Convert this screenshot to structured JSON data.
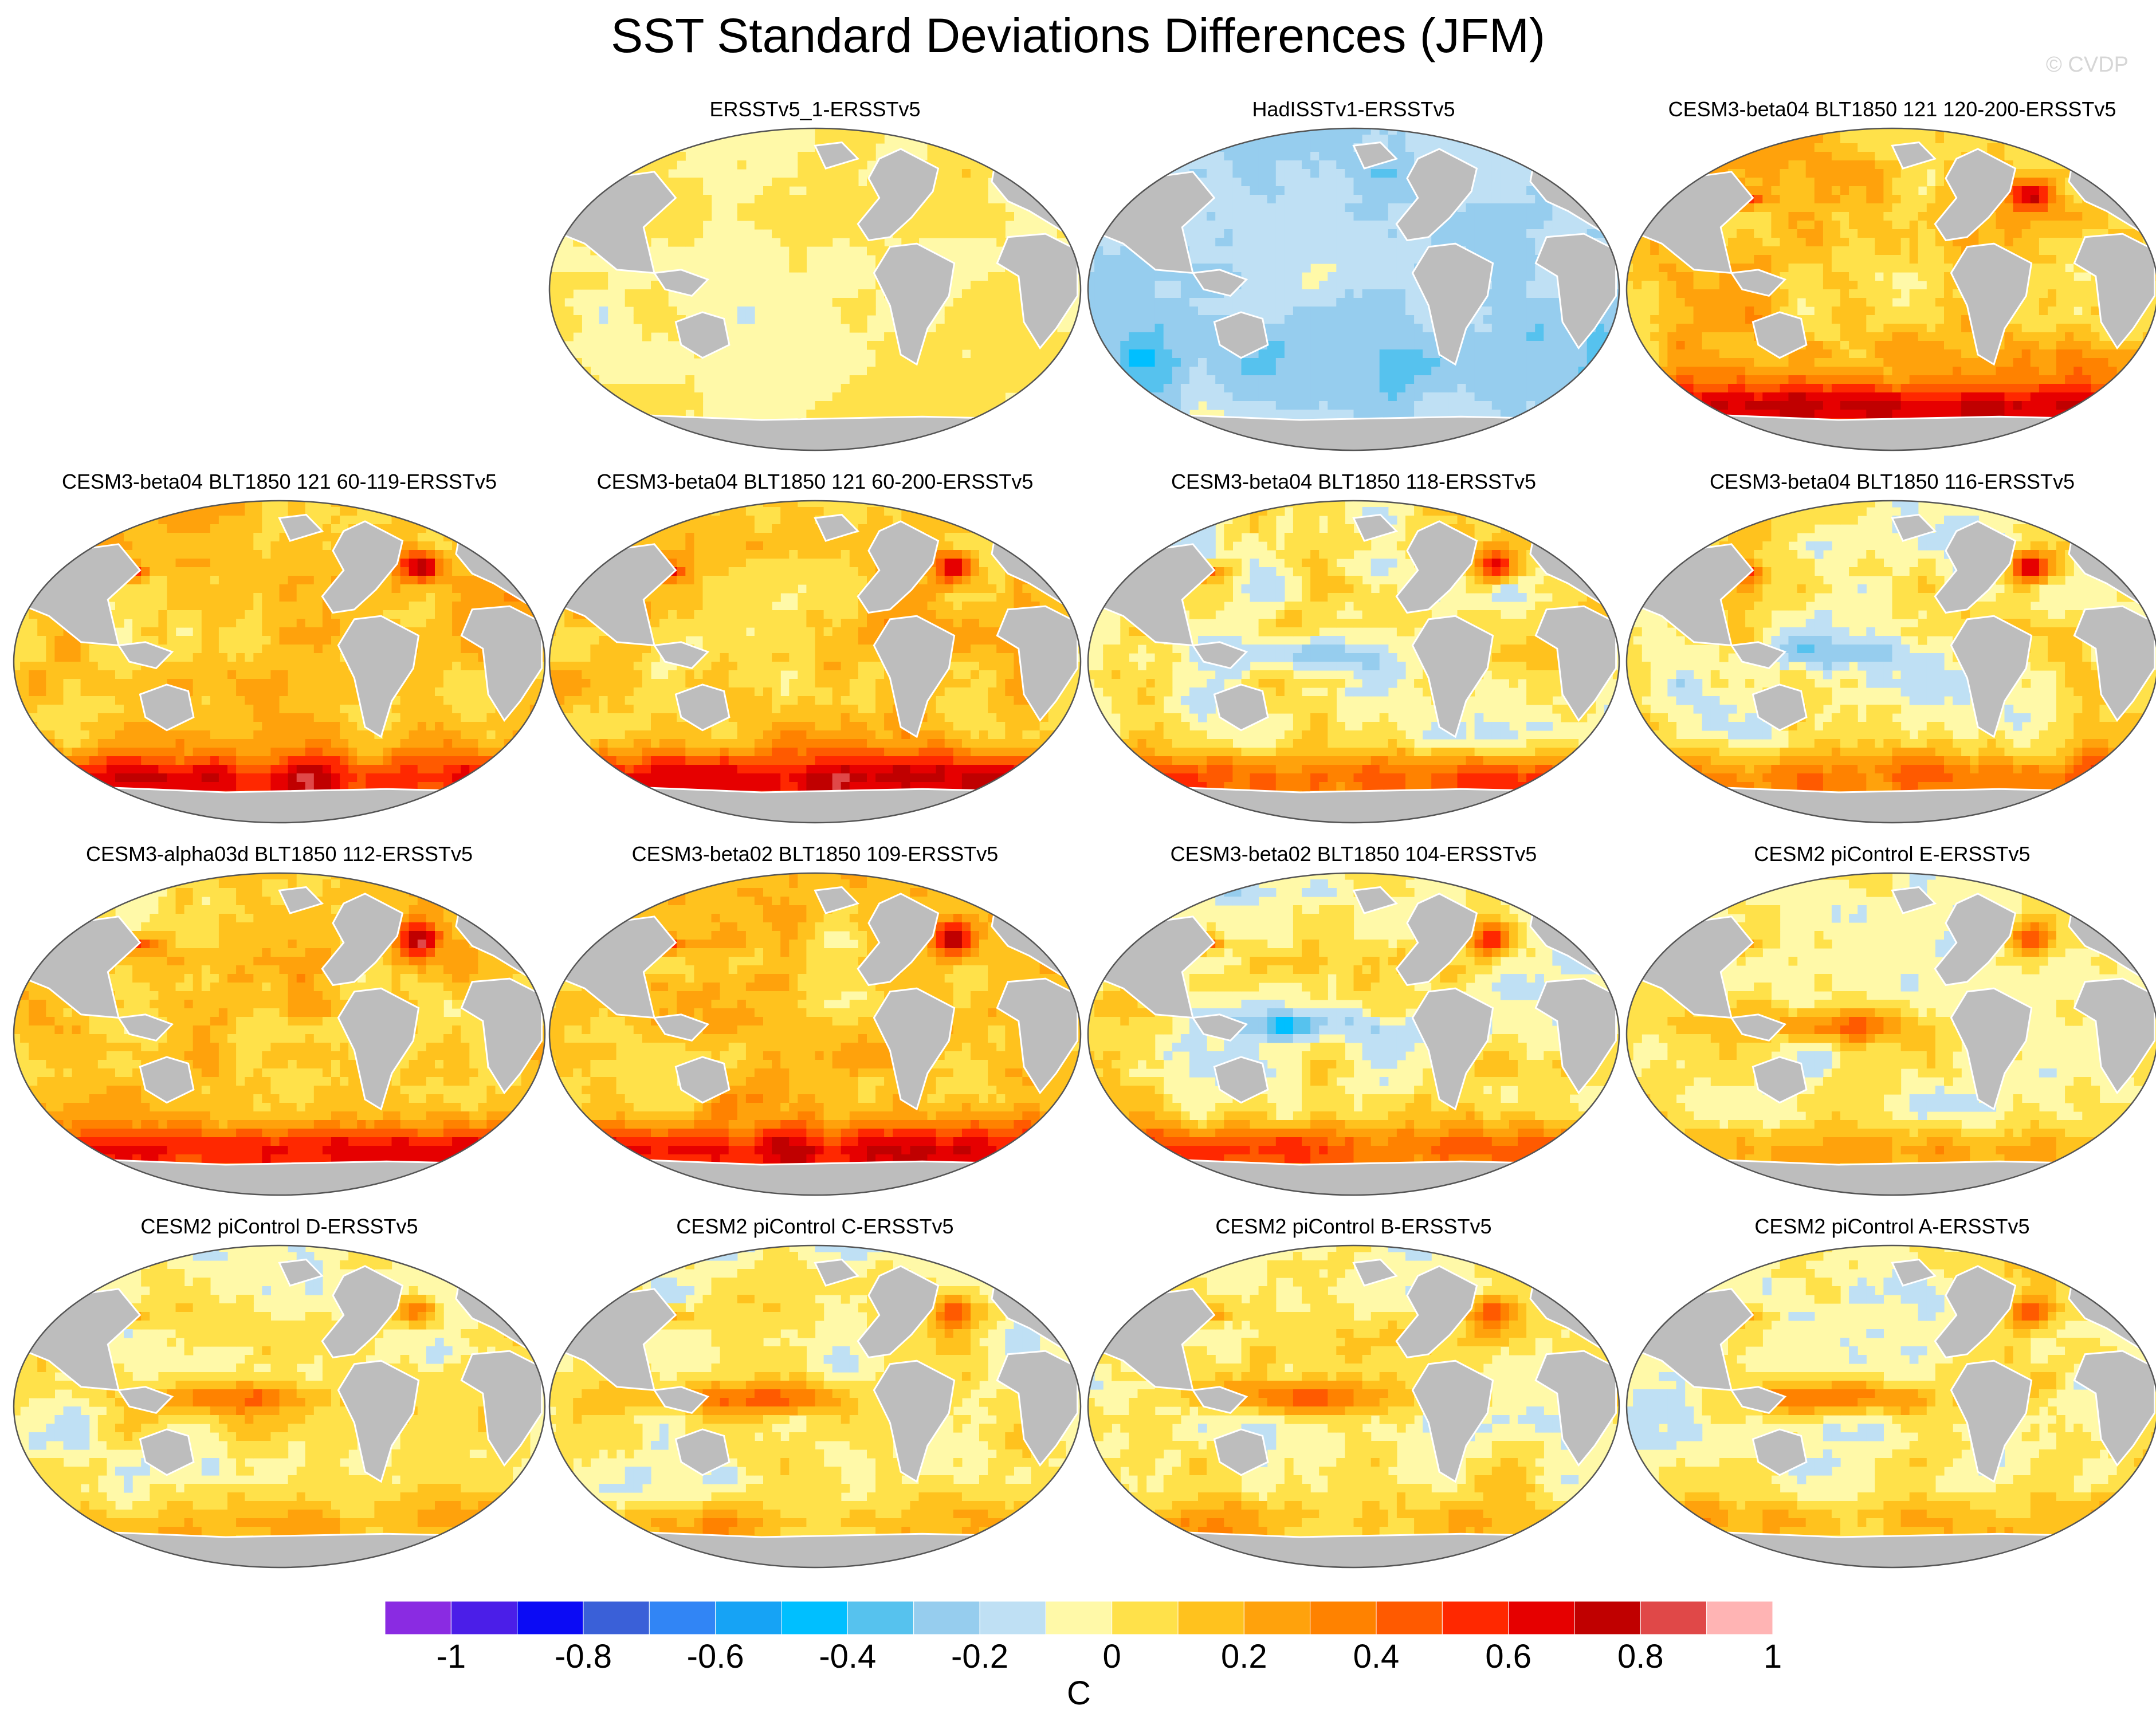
{
  "chart_data": {
    "type": "heatmap",
    "title": "SST Standard Deviations Differences (JFM)",
    "watermark": "© CVDP",
    "projection": "global map (Robinson-like)",
    "units": "C",
    "colorbar": {
      "ticks": [
        "-1",
        "-0.8",
        "-0.6",
        "-0.4",
        "-0.2",
        "0",
        "0.2",
        "0.4",
        "0.6",
        "0.8",
        "1"
      ],
      "range": [
        -1.1,
        1.1
      ],
      "colors": [
        "#8a2be2",
        "#4b1ee8",
        "#0b0bf5",
        "#3a60d8",
        "#3185f5",
        "#16a3f5",
        "#00bfff",
        "#56c2ee",
        "#96cdee",
        "#bfe0f4",
        "#fff9a8",
        "#ffe14a",
        "#ffc21e",
        "#ffa20c",
        "#ff8200",
        "#ff5a00",
        "#ff2800",
        "#e60000",
        "#c00000",
        "#e04848",
        "#ffb4b4"
      ]
    },
    "panels": [
      {
        "title": "ERSSTv5_1-ERSSTv5",
        "pattern": "weak"
      },
      {
        "title": "HadISSTv1-ERSSTv5",
        "pattern": "blue"
      },
      {
        "title": "CESM3-beta04 BLT1850 121 120-200-ERSSTv5",
        "pattern": "warm-south"
      },
      {
        "title": "CESM3-beta04 BLT1850 121 60-119-ERSSTv5",
        "pattern": "warm-south"
      },
      {
        "title": "CESM3-beta04 BLT1850 121 60-200-ERSSTv5",
        "pattern": "warm-south"
      },
      {
        "title": "CESM3-beta04 BLT1850 118-ERSSTv5",
        "pattern": "mixed-south"
      },
      {
        "title": "CESM3-beta04 BLT1850 116-ERSSTv5",
        "pattern": "mixed-south"
      },
      {
        "title": "CESM3-alpha03d BLT1850 112-ERSSTv5",
        "pattern": "warm-south"
      },
      {
        "title": "CESM3-beta02 BLT1850 109-ERSSTv5",
        "pattern": "warm-south"
      },
      {
        "title": "CESM3-beta02 BLT1850 104-ERSSTv5",
        "pattern": "mixed-south"
      },
      {
        "title": "CESM2 piControl E-ERSSTv5",
        "pattern": "enso"
      },
      {
        "title": "CESM2 piControl D-ERSSTv5",
        "pattern": "enso"
      },
      {
        "title": "CESM2 piControl C-ERSSTv5",
        "pattern": "enso"
      },
      {
        "title": "CESM2 piControl B-ERSSTv5",
        "pattern": "enso"
      },
      {
        "title": "CESM2 piControl A-ERSSTv5",
        "pattern": "enso"
      }
    ]
  }
}
